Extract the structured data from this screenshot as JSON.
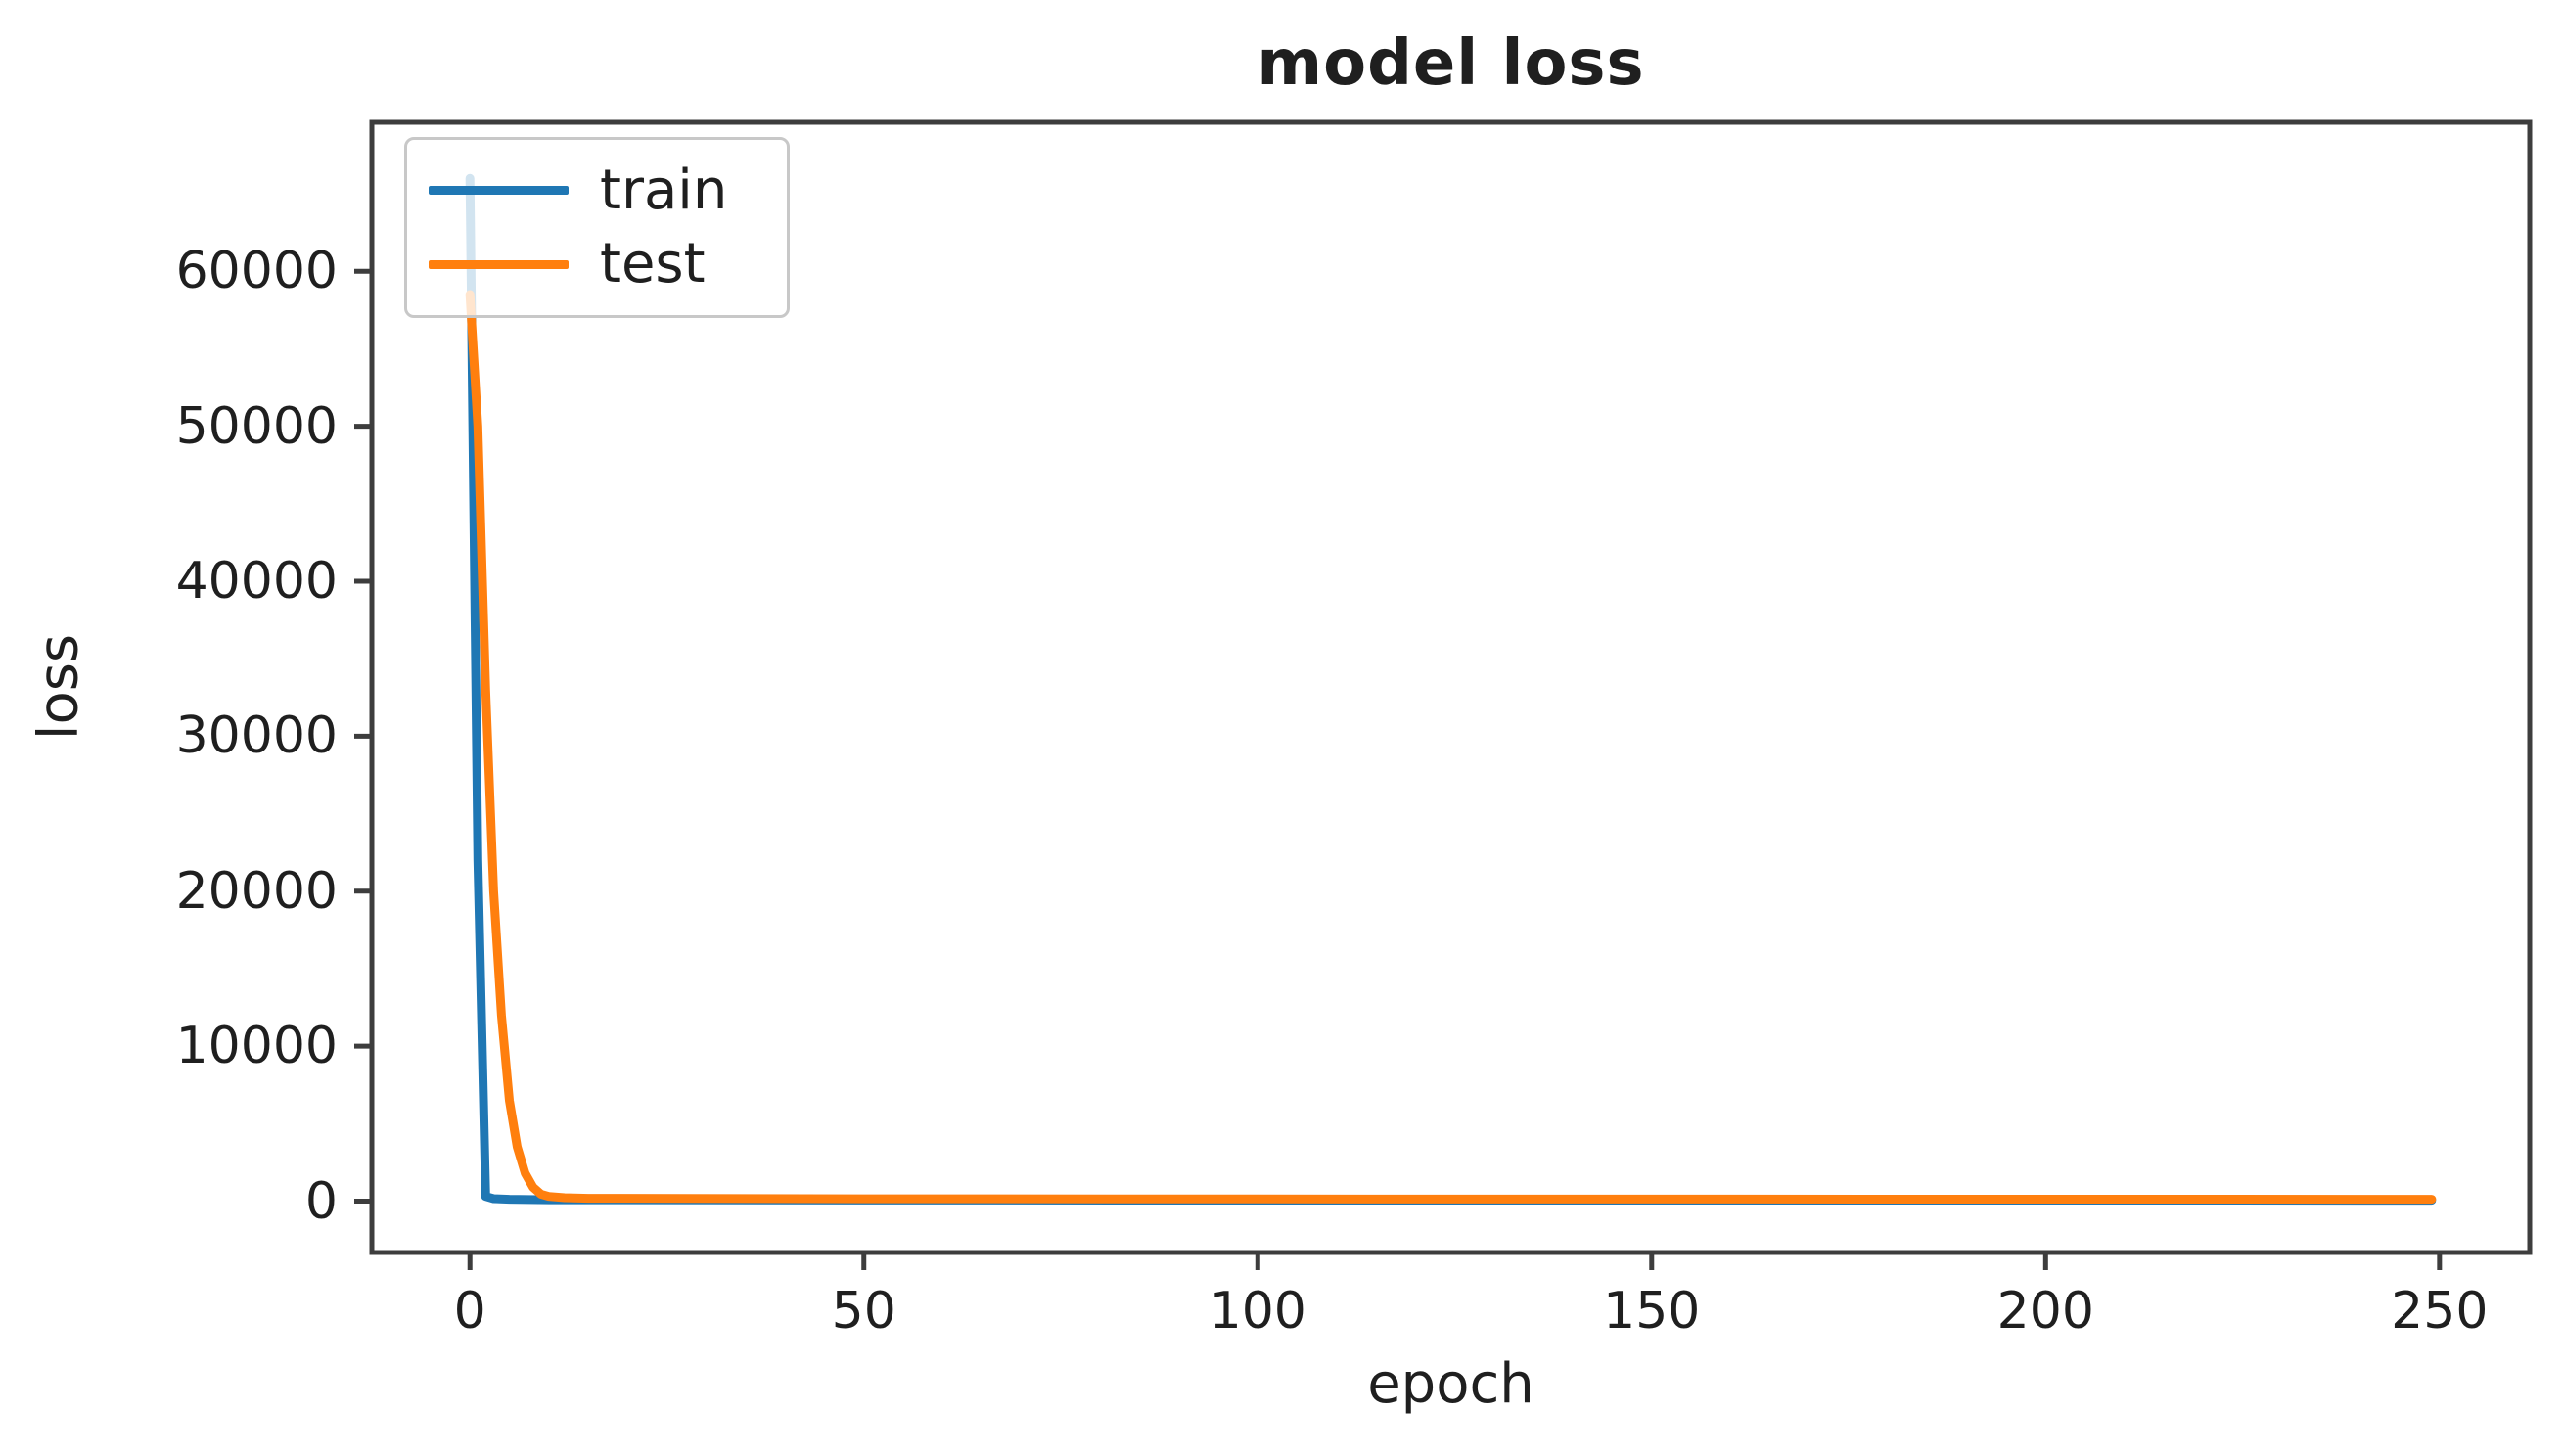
{
  "chart_data": {
    "type": "line",
    "title": "model loss",
    "xlabel": "epoch",
    "ylabel": "loss",
    "xlim": [
      -12.45,
      261.45
    ],
    "ylim": [
      -3315,
      69615
    ],
    "xticks": [
      0,
      50,
      100,
      150,
      200,
      250
    ],
    "yticks": [
      0,
      10000,
      20000,
      30000,
      40000,
      50000,
      60000
    ],
    "grid": false,
    "background": "#ffffff",
    "axis_color": "#3d3d3d",
    "text_color": "#1f1f1f",
    "legend": {
      "location": "upper left",
      "border_color": "#c8c8c8"
    },
    "series": [
      {
        "name": "train",
        "color": "#1f77b4",
        "x": [
          0,
          1,
          2,
          3,
          5,
          10,
          50,
          100,
          150,
          200,
          249
        ],
        "y": [
          66000,
          22000,
          300,
          160,
          120,
          90,
          70,
          65,
          60,
          60,
          55
        ]
      },
      {
        "name": "test",
        "color": "#ff7f0e",
        "x": [
          0,
          1,
          2,
          3,
          4,
          5,
          6,
          7,
          8,
          9,
          10,
          12,
          15,
          50,
          100,
          150,
          200,
          249
        ],
        "y": [
          58500,
          50000,
          33000,
          20000,
          12000,
          6500,
          3500,
          1800,
          900,
          450,
          300,
          220,
          180,
          150,
          140,
          130,
          125,
          120
        ]
      }
    ]
  }
}
